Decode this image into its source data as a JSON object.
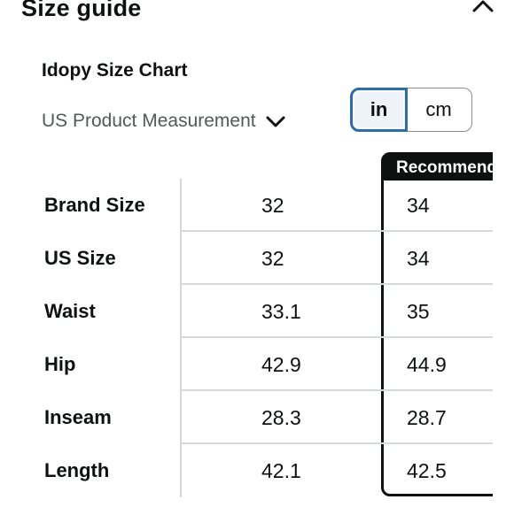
{
  "header": {
    "title": "Size guide",
    "collapse_icon": "chevron-up-icon"
  },
  "chart": {
    "title": "Idopy Size Chart"
  },
  "measurement_dropdown": {
    "selected": "US Product Measurement",
    "icon": "chevron-down-icon"
  },
  "unit_toggle": {
    "options": [
      "in",
      "cm"
    ],
    "selected": "in"
  },
  "size_table": {
    "recommended_label": "Recommended",
    "rows": [
      {
        "label": "Brand Size",
        "values": [
          "32",
          "34"
        ]
      },
      {
        "label": "US Size",
        "values": [
          "32",
          "34"
        ]
      },
      {
        "label": "Waist",
        "values": [
          "33.1",
          "35"
        ]
      },
      {
        "label": "Hip",
        "values": [
          "42.9",
          "44.9"
        ]
      },
      {
        "label": "Inseam",
        "values": [
          "28.3",
          "28.7"
        ]
      },
      {
        "label": "Length",
        "values": [
          "42.1",
          "42.5"
        ]
      }
    ]
  },
  "colors": {
    "text": "#0f1111",
    "secondary_text": "#565959",
    "toggle_selected_border": "#2f6ea5",
    "toggle_selected_bg": "#edf3f8",
    "divider": "#d5d9d9",
    "recommended_border": "#0f1111"
  }
}
